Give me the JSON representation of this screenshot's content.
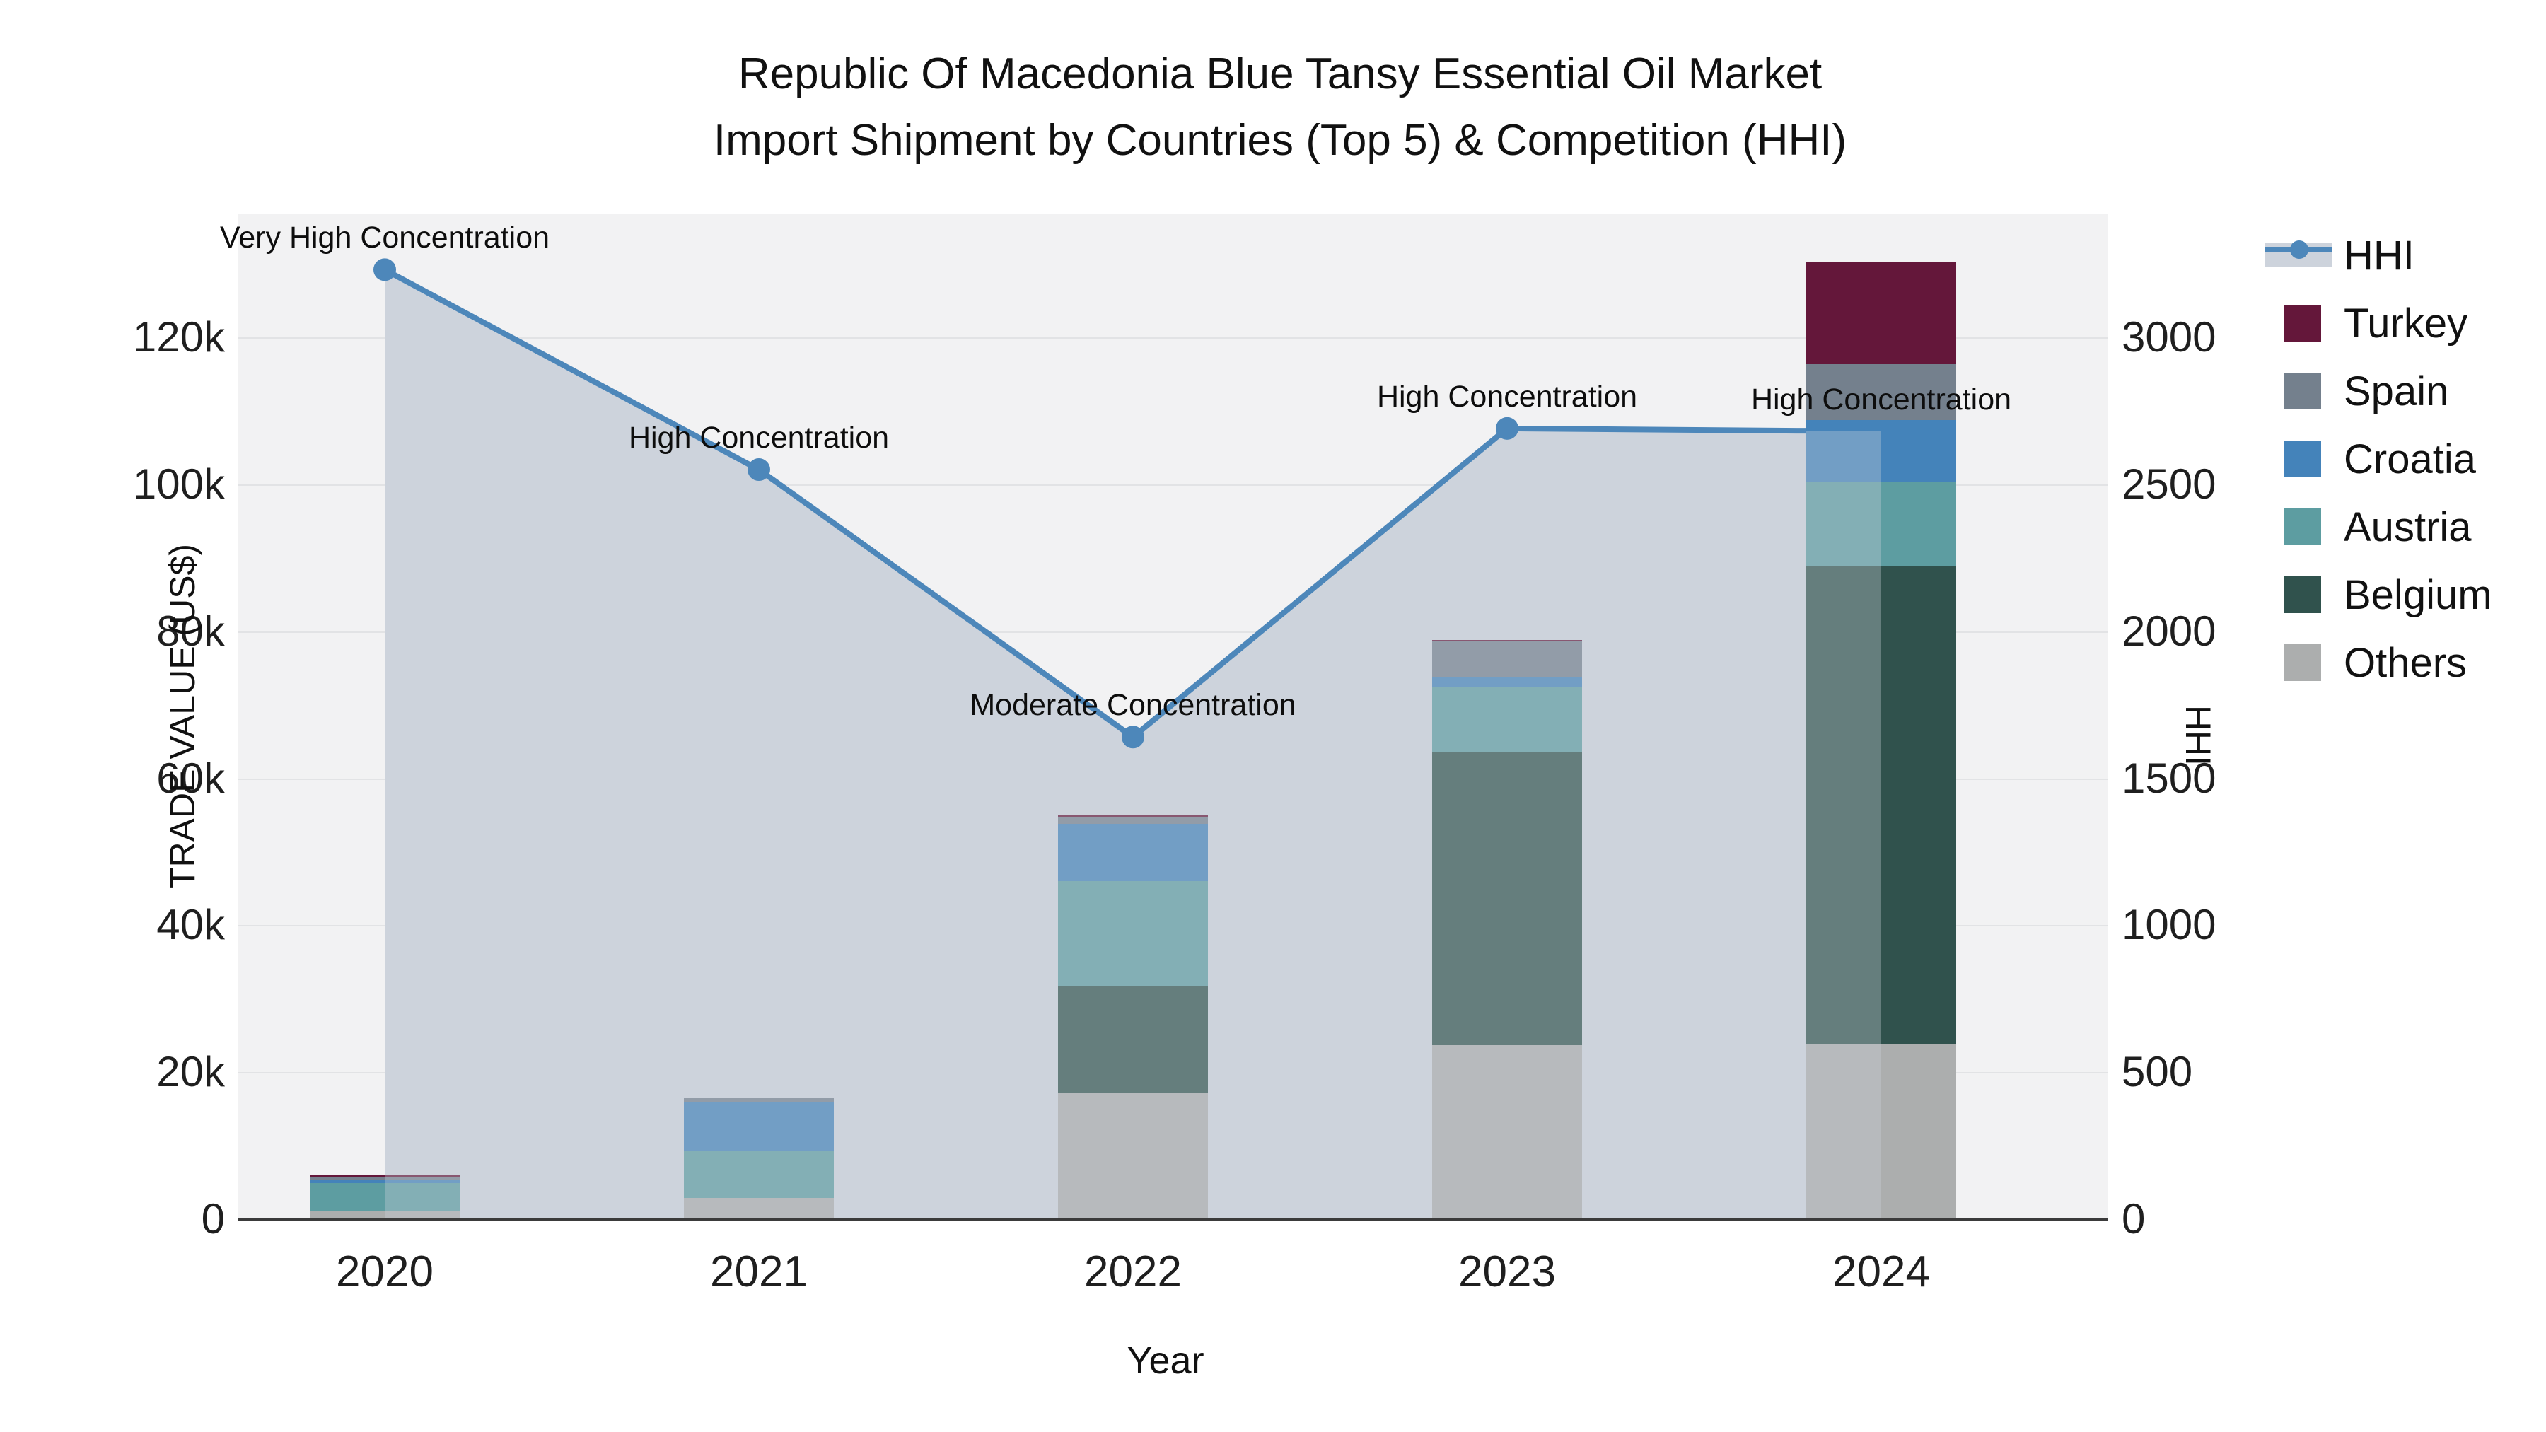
{
  "title": {
    "line1": "Republic Of Macedonia Blue Tansy Essential Oil Market",
    "line2": "Import Shipment by Countries (Top 5) & Competition (HHI)"
  },
  "legend": {
    "items": [
      {
        "label": "HHI",
        "type": "line-marker"
      },
      {
        "label": "Turkey",
        "color": "#64173a"
      },
      {
        "label": "Spain",
        "color": "#74808d"
      },
      {
        "label": "Croatia",
        "color": "#4483ba"
      },
      {
        "label": "Austria",
        "color": "#5d9da1"
      },
      {
        "label": "Belgium",
        "color": "#30524d"
      },
      {
        "label": "Others",
        "color": "#acaeae"
      }
    ]
  },
  "chart_data": {
    "type": "bar",
    "subtype": "stacked-bars-with-line",
    "title": "Republic Of Macedonia Blue Tansy Essential Oil Market Import Shipment by Countries (Top 5) & Competition (HHI)",
    "categories": [
      "2020",
      "2021",
      "2022",
      "2023",
      "2024"
    ],
    "series": [
      {
        "name": "Turkey",
        "color": "#64173a",
        "values": [
          200,
          0,
          200,
          200,
          14000
        ]
      },
      {
        "name": "Spain",
        "color": "#74808d",
        "values": [
          400,
          600,
          1000,
          4900,
          7600
        ]
      },
      {
        "name": "Croatia",
        "color": "#4483ba",
        "values": [
          500,
          6700,
          7800,
          1300,
          8400
        ]
      },
      {
        "name": "Austria",
        "color": "#5d9da1",
        "values": [
          3700,
          6300,
          14300,
          8800,
          11400
        ]
      },
      {
        "name": "Belgium",
        "color": "#30524d",
        "values": [
          0,
          0,
          14500,
          39900,
          65000
        ]
      },
      {
        "name": "Others",
        "color": "#acaeae",
        "values": [
          1200,
          2900,
          17200,
          23700,
          23900
        ]
      }
    ],
    "stack_order_bottom_to_top": [
      "Others",
      "Belgium",
      "Austria",
      "Croatia",
      "Spain",
      "Turkey"
    ],
    "line_series": {
      "name": "HHI",
      "color": "#4d87ba",
      "area_color": "#cdd3dc",
      "values": [
        3230,
        2550,
        1640,
        2690,
        2680
      ]
    },
    "annotations": [
      {
        "year": "2020",
        "text": "Very High Concentration"
      },
      {
        "year": "2021",
        "text": "High Concentration"
      },
      {
        "year": "2022",
        "text": "Moderate Concentration"
      },
      {
        "year": "2023",
        "text": "High Concentration"
      },
      {
        "year": "2024",
        "text": "High Concentration"
      }
    ],
    "xlabel": "Year",
    "ylabel_left": "TRADE VALUE (US$)",
    "ylabel_right": "HHI",
    "yaxis_left": {
      "ticks": [
        "0",
        "20k",
        "40k",
        "60k",
        "80k",
        "100k",
        "120k"
      ],
      "values": [
        0,
        20000,
        40000,
        60000,
        80000,
        100000,
        120000
      ],
      "max": 120000
    },
    "yaxis_right": {
      "ticks": [
        "0",
        "500",
        "1000",
        "1500",
        "2000",
        "2500",
        "3000"
      ],
      "values": [
        0,
        500,
        1000,
        1500,
        2000,
        2500,
        3000
      ],
      "max": 3000
    },
    "grid": true,
    "legend_position": "right",
    "plot_bg": "#f2f2f3",
    "grid_color": "#e2e3e5"
  }
}
